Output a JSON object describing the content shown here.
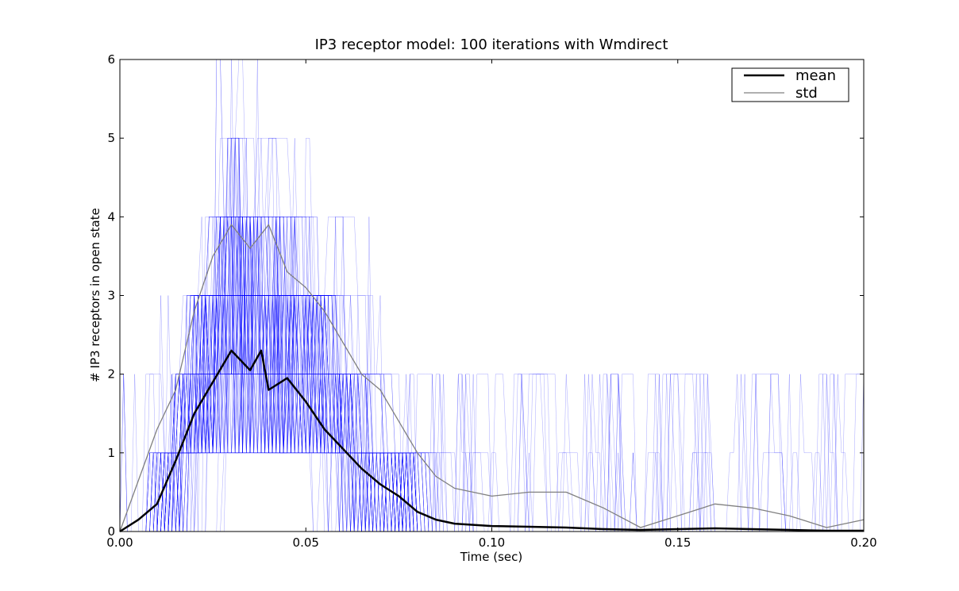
{
  "chart_data": {
    "type": "line",
    "title": "IP3 receptor model: 100 iterations with Wmdirect",
    "xlabel": "Time (sec)",
    "ylabel": "# IP3 receptors in open state",
    "xlim": [
      0.0,
      0.2
    ],
    "ylim": [
      0,
      6
    ],
    "x_ticks": [
      "0.00",
      "0.05",
      "0.10",
      "0.15",
      "0.20"
    ],
    "y_ticks": [
      "0",
      "1",
      "2",
      "3",
      "4",
      "5",
      "6"
    ],
    "legend_position": "top-right",
    "grid": false,
    "colors": {
      "iterations": "#0000ff",
      "mean": "#000000",
      "std": "#808080"
    },
    "iterations_count": 100,
    "series": [
      {
        "name": "mean",
        "x": [
          0.0,
          0.005,
          0.01,
          0.015,
          0.02,
          0.025,
          0.03,
          0.035,
          0.038,
          0.04,
          0.045,
          0.05,
          0.055,
          0.06,
          0.065,
          0.07,
          0.075,
          0.08,
          0.085,
          0.09,
          0.1,
          0.11,
          0.12,
          0.13,
          0.14,
          0.15,
          0.16,
          0.17,
          0.18,
          0.19,
          0.2
        ],
        "values": [
          0.0,
          0.15,
          0.35,
          0.9,
          1.5,
          1.9,
          2.3,
          2.05,
          2.3,
          1.8,
          1.95,
          1.65,
          1.3,
          1.05,
          0.8,
          0.6,
          0.45,
          0.25,
          0.15,
          0.1,
          0.07,
          0.06,
          0.05,
          0.03,
          0.02,
          0.03,
          0.04,
          0.03,
          0.02,
          0.01,
          0.01
        ]
      },
      {
        "name": "std",
        "x": [
          0.0,
          0.005,
          0.01,
          0.015,
          0.02,
          0.025,
          0.03,
          0.035,
          0.04,
          0.045,
          0.05,
          0.055,
          0.06,
          0.065,
          0.07,
          0.075,
          0.08,
          0.085,
          0.09,
          0.1,
          0.11,
          0.12,
          0.13,
          0.14,
          0.15,
          0.16,
          0.17,
          0.18,
          0.19,
          0.2
        ],
        "values": [
          0.0,
          0.65,
          1.3,
          1.8,
          2.8,
          3.5,
          3.9,
          3.6,
          3.9,
          3.3,
          3.1,
          2.8,
          2.4,
          2.0,
          1.8,
          1.4,
          1.0,
          0.7,
          0.55,
          0.45,
          0.5,
          0.5,
          0.3,
          0.05,
          0.2,
          0.35,
          0.3,
          0.2,
          0.05,
          0.15
        ]
      }
    ]
  }
}
